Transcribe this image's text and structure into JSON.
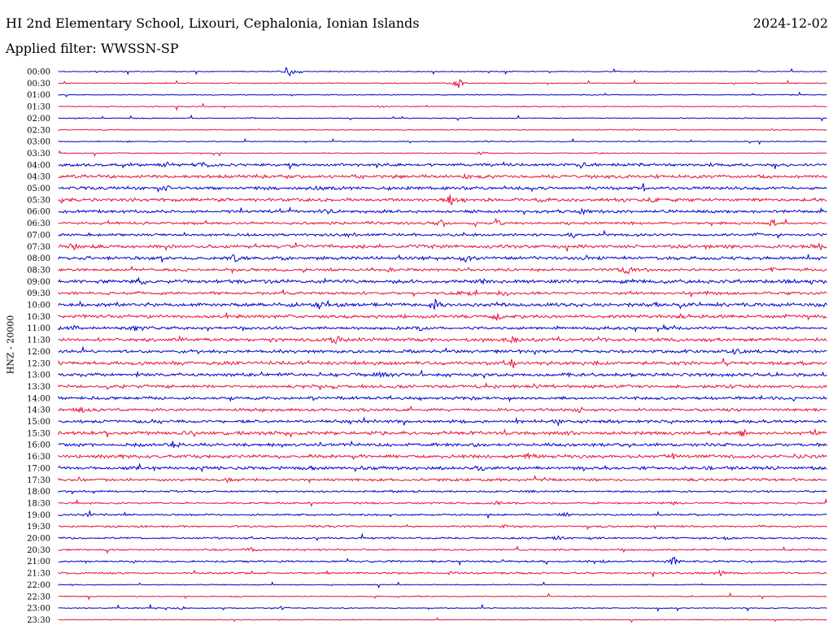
{
  "header": {
    "title": "HI 2nd Elementary School, Lixouri, Cephalonia, Ionian Islands",
    "date": "2024-12-02",
    "filter": "Applied filter: WWSSN-SP"
  },
  "chart_data": {
    "type": "line",
    "title": "HI 2nd Elementary School, Lixouri, Cephalonia, Ionian Islands",
    "ylabel": "HNZ - 20000",
    "colors": [
      "#0000cc",
      "#e8103a"
    ],
    "rows": [
      {
        "label": "00:00",
        "events": [
          [
            0.3,
            8
          ],
          [
            0.91,
            1
          ]
        ]
      },
      {
        "label": "00:30",
        "events": [
          [
            0.52,
            8
          ],
          [
            0.96,
            1
          ]
        ]
      },
      {
        "label": "01:00",
        "events": []
      },
      {
        "label": "01:30",
        "events": [
          [
            0.06,
            1
          ],
          [
            0.42,
            1
          ],
          [
            0.61,
            1
          ],
          [
            0.66,
            1
          ]
        ]
      },
      {
        "label": "02:00",
        "events": [
          [
            0.25,
            1
          ]
        ]
      },
      {
        "label": "02:30",
        "events": [
          [
            0.75,
            1
          ],
          [
            0.93,
            1
          ]
        ]
      },
      {
        "label": "03:00",
        "events": [
          [
            0.09,
            1
          ],
          [
            0.56,
            1
          ]
        ]
      },
      {
        "label": "03:30",
        "events": [
          [
            0.08,
            1
          ],
          [
            0.55,
            2
          ],
          [
            0.7,
            1
          ]
        ]
      },
      {
        "label": "04:00",
        "events": [
          [
            0.14,
            2
          ],
          [
            0.19,
            3
          ],
          [
            0.68,
            4
          ],
          [
            0.85,
            2
          ]
        ]
      },
      {
        "label": "04:30",
        "events": [
          [
            0.53,
            2
          ]
        ]
      },
      {
        "label": "05:00",
        "events": [
          [
            0.14,
            3
          ],
          [
            0.34,
            2
          ],
          [
            0.76,
            2
          ]
        ]
      },
      {
        "label": "05:30",
        "events": [
          [
            0.51,
            6
          ],
          [
            0.63,
            2
          ],
          [
            0.77,
            3
          ]
        ]
      },
      {
        "label": "06:00",
        "events": [
          [
            0.35,
            2
          ],
          [
            0.68,
            3
          ]
        ]
      },
      {
        "label": "06:30",
        "events": [
          [
            0.5,
            6
          ],
          [
            0.57,
            5
          ],
          [
            0.93,
            5
          ]
        ]
      },
      {
        "label": "07:00",
        "events": [
          [
            0.38,
            2
          ],
          [
            0.67,
            3
          ],
          [
            0.91,
            2
          ]
        ]
      },
      {
        "label": "07:30",
        "events": [
          [
            0.02,
            4
          ],
          [
            0.47,
            2
          ],
          [
            0.99,
            5
          ]
        ]
      },
      {
        "label": "08:00",
        "events": [
          [
            0.23,
            7
          ],
          [
            0.53,
            4
          ]
        ]
      },
      {
        "label": "08:30",
        "events": [
          [
            0.43,
            2
          ],
          [
            0.74,
            6
          ],
          [
            0.93,
            2
          ]
        ]
      },
      {
        "label": "09:00",
        "events": [
          [
            0.11,
            2
          ],
          [
            0.55,
            2
          ]
        ]
      },
      {
        "label": "09:30",
        "events": [
          [
            0.53,
            4
          ],
          [
            0.58,
            3
          ],
          [
            0.85,
            3
          ]
        ]
      },
      {
        "label": "10:00",
        "events": [
          [
            0.34,
            5
          ],
          [
            0.49,
            6
          ],
          [
            0.78,
            2
          ]
        ]
      },
      {
        "label": "10:30",
        "events": [
          [
            0.57,
            5
          ],
          [
            0.81,
            4
          ]
        ]
      },
      {
        "label": "11:00",
        "events": [
          [
            0.02,
            3
          ],
          [
            0.1,
            5
          ],
          [
            0.47,
            3
          ],
          [
            0.8,
            2
          ]
        ]
      },
      {
        "label": "11:30",
        "events": [
          [
            0.36,
            6
          ],
          [
            0.59,
            4
          ]
        ]
      },
      {
        "label": "12:00",
        "events": [
          [
            0.88,
            3
          ]
        ]
      },
      {
        "label": "12:30",
        "events": [
          [
            0.59,
            5
          ]
        ]
      },
      {
        "label": "13:00",
        "events": [
          [
            0.42,
            3
          ],
          [
            0.75,
            2
          ]
        ]
      },
      {
        "label": "13:30",
        "events": [
          [
            0.36,
            2
          ],
          [
            0.62,
            2
          ]
        ]
      },
      {
        "label": "14:00",
        "events": [
          [
            0.54,
            2
          ]
        ]
      },
      {
        "label": "14:30",
        "events": [
          [
            0.03,
            4
          ],
          [
            0.68,
            4
          ]
        ]
      },
      {
        "label": "15:00",
        "events": [
          [
            0.65,
            3
          ],
          [
            0.12,
            2
          ]
        ]
      },
      {
        "label": "15:30",
        "events": [
          [
            0.89,
            4
          ]
        ]
      },
      {
        "label": "16:00",
        "events": [
          [
            0.15,
            5
          ],
          [
            0.54,
            2
          ]
        ]
      },
      {
        "label": "16:30",
        "events": [
          [
            0.61,
            2
          ],
          [
            0.8,
            4
          ]
        ]
      },
      {
        "label": "17:00",
        "events": [
          [
            0.33,
            2
          ],
          [
            0.55,
            2
          ]
        ]
      },
      {
        "label": "17:30",
        "events": [
          [
            0.22,
            3
          ],
          [
            0.63,
            2
          ]
        ]
      },
      {
        "label": "18:00",
        "events": [
          [
            0.44,
            2
          ],
          [
            0.61,
            2
          ]
        ]
      },
      {
        "label": "18:30",
        "events": [
          [
            0.57,
            2
          ],
          [
            0.8,
            2
          ]
        ]
      },
      {
        "label": "19:00",
        "events": [
          [
            0.04,
            2
          ],
          [
            0.66,
            2
          ]
        ]
      },
      {
        "label": "19:30",
        "events": [
          [
            0.33,
            2
          ],
          [
            0.58,
            2
          ]
        ]
      },
      {
        "label": "20:00",
        "events": [
          [
            0.65,
            2
          ],
          [
            0.87,
            2
          ]
        ]
      },
      {
        "label": "20:30",
        "events": [
          [
            0.25,
            2
          ]
        ]
      },
      {
        "label": "21:00",
        "events": [
          [
            0.8,
            6
          ],
          [
            0.71,
            2
          ]
        ]
      },
      {
        "label": "21:30",
        "events": [
          [
            0.86,
            4
          ],
          [
            0.51,
            2
          ]
        ]
      },
      {
        "label": "22:00",
        "events": []
      },
      {
        "label": "22:30",
        "events": [
          [
            0.23,
            1
          ],
          [
            0.47,
            1
          ]
        ]
      },
      {
        "label": "23:00",
        "events": [
          [
            0.1,
            1
          ],
          [
            0.16,
            2
          ],
          [
            0.29,
            2
          ]
        ]
      },
      {
        "label": "23:30",
        "events": []
      }
    ]
  }
}
